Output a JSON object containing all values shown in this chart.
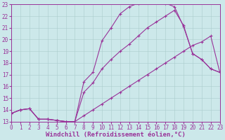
{
  "background_color": "#cce8ea",
  "grid_color": "#aacccc",
  "line_color": "#993399",
  "marker": "+",
  "xlim": [
    0,
    23
  ],
  "ylim": [
    13,
    23
  ],
  "xlabel": "Windchill (Refroidissement éolien,°C)",
  "xlabel_fontsize": 6.5,
  "xtick_fontsize": 5.5,
  "ytick_fontsize": 5.5,
  "lines": [
    {
      "x": [
        0,
        1,
        2,
        3,
        4,
        5,
        6,
        7,
        8,
        9,
        10,
        11,
        12,
        13,
        14,
        15,
        16,
        17,
        18,
        19,
        20,
        21,
        22,
        23
      ],
      "y": [
        13.7,
        14.0,
        14.1,
        13.2,
        13.2,
        13.1,
        13.0,
        13.0,
        16.4,
        17.2,
        19.9,
        21.0,
        22.2,
        22.8,
        23.1,
        23.4,
        23.5,
        23.1,
        22.8,
        21.1,
        18.8,
        18.3,
        17.5,
        17.2
      ]
    },
    {
      "x": [
        0,
        1,
        2,
        3,
        4,
        5,
        6,
        7,
        8,
        9,
        10,
        11,
        12,
        13,
        14,
        15,
        16,
        17,
        18,
        19,
        20,
        21,
        22,
        23
      ],
      "y": [
        13.7,
        14.0,
        14.1,
        13.2,
        13.2,
        13.1,
        13.0,
        13.0,
        15.5,
        16.3,
        17.5,
        18.3,
        19.0,
        19.6,
        20.3,
        21.0,
        21.5,
        22.0,
        22.5,
        21.2,
        18.8,
        18.3,
        17.5,
        17.2
      ]
    },
    {
      "x": [
        0,
        1,
        2,
        3,
        4,
        5,
        6,
        7,
        8,
        9,
        10,
        11,
        12,
        13,
        14,
        15,
        16,
        17,
        18,
        19,
        20,
        21,
        22,
        23
      ],
      "y": [
        13.7,
        14.0,
        14.1,
        13.2,
        13.2,
        13.1,
        13.0,
        13.0,
        13.5,
        14.0,
        14.5,
        15.0,
        15.5,
        16.0,
        16.5,
        17.0,
        17.5,
        18.0,
        18.5,
        19.0,
        19.5,
        19.8,
        20.3,
        17.2
      ]
    }
  ]
}
